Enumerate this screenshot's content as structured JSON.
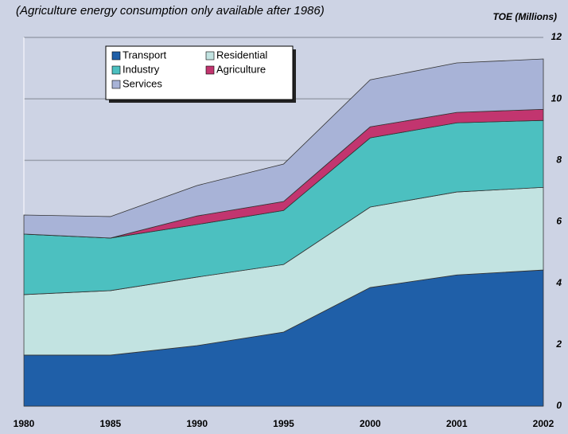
{
  "chart_data": {
    "type": "stacked_area",
    "subtitle": "(Agriculture energy consumption only available after 1986)",
    "y_axis_label": "TOE (Millions)",
    "categories": [
      "1980",
      "1985",
      "1990",
      "1995",
      "2000",
      "2001",
      "2002"
    ],
    "series": [
      {
        "name": "Transport",
        "color": "#1f5fa8",
        "values": [
          1.66,
          1.66,
          1.97,
          2.41,
          3.86,
          4.27,
          4.43
        ]
      },
      {
        "name": "Residential",
        "color": "#c2e3e1",
        "values": [
          1.97,
          2.1,
          2.23,
          2.2,
          2.62,
          2.7,
          2.69
        ]
      },
      {
        "name": "Industry",
        "color": "#4cc0c0",
        "values": [
          1.97,
          1.71,
          1.71,
          1.76,
          2.25,
          2.25,
          2.18
        ]
      },
      {
        "name": "Agriculture",
        "color": "#c2356f",
        "values": [
          0,
          0,
          0.28,
          0.29,
          0.36,
          0.34,
          0.36
        ]
      },
      {
        "name": "Services",
        "color": "#a8b3d7",
        "values": [
          0.62,
          0.7,
          0.99,
          1.22,
          1.53,
          1.61,
          1.64
        ]
      }
    ],
    "ylim": [
      0,
      12
    ],
    "yticks": [
      0,
      2,
      4,
      6,
      8,
      10,
      12
    ],
    "grid": true,
    "legend": "top-left"
  }
}
